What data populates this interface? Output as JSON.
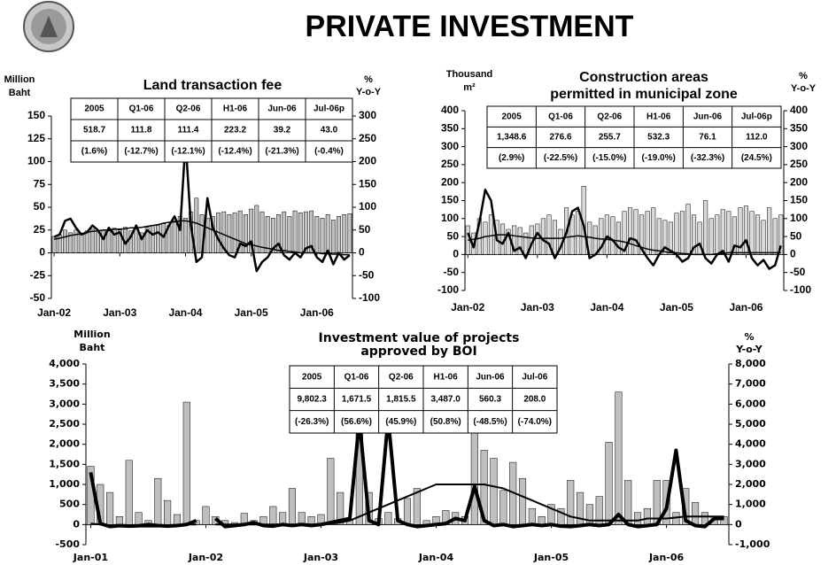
{
  "title": "PRIVATE INVESTMENT",
  "chart_data": [
    {
      "type": "bar",
      "title": "Land transaction fee",
      "ylabel": [
        "Million",
        "Baht"
      ],
      "y2label": [
        "%",
        "Y-o-Y"
      ],
      "categories": [
        "Jan-02",
        null,
        null,
        null,
        null,
        null,
        null,
        null,
        null,
        null,
        null,
        null,
        "Jan-03",
        null,
        null,
        null,
        null,
        null,
        null,
        null,
        null,
        null,
        null,
        null,
        "Jan-04",
        null,
        null,
        null,
        null,
        null,
        null,
        null,
        null,
        null,
        null,
        null,
        "Jan-05",
        null,
        null,
        null,
        null,
        null,
        null,
        null,
        null,
        null,
        null,
        null,
        "Jan-06",
        null,
        null,
        null,
        null,
        null,
        null
      ],
      "ylim": [
        -50,
        150
      ],
      "yticks": [
        -50,
        -25,
        0,
        25,
        50,
        75,
        100,
        125,
        150
      ],
      "y2lim": [
        -100,
        300
      ],
      "y2ticks": [
        -100,
        -50,
        0,
        50,
        100,
        150,
        200,
        250,
        300
      ],
      "series": [
        {
          "type": "bar",
          "axis": "y",
          "color": "#c0c0c0",
          "values": [
            18,
            20,
            25,
            22,
            25,
            20,
            24,
            26,
            22,
            25,
            24,
            27,
            25,
            28,
            24,
            26,
            22,
            28,
            30,
            30,
            32,
            30,
            35,
            40,
            38,
            45,
            60,
            42,
            38,
            40,
            44,
            45,
            42,
            44,
            46,
            42,
            48,
            52,
            45,
            40,
            38,
            42,
            45,
            40,
            46,
            44,
            45,
            46,
            40,
            38,
            42,
            36,
            40,
            42,
            43
          ]
        },
        {
          "type": "line",
          "axis": "y2",
          "color": "#000000",
          "width": 2.5,
          "values": [
            35,
            40,
            70,
            75,
            55,
            40,
            45,
            60,
            50,
            30,
            55,
            40,
            45,
            20,
            35,
            60,
            30,
            50,
            40,
            45,
            35,
            60,
            80,
            50,
            245,
            60,
            -20,
            -10,
            120,
            55,
            30,
            10,
            -5,
            -10,
            20,
            15,
            25,
            -40,
            -20,
            -10,
            10,
            20,
            -5,
            -15,
            0,
            -10,
            10,
            15,
            -10,
            -20,
            5,
            -25,
            0,
            -15,
            -5
          ]
        },
        {
          "type": "line",
          "axis": "y2",
          "color": "#000000",
          "width": 1.5,
          "values": [
            30,
            32,
            35,
            38,
            40,
            42,
            45,
            47,
            48,
            50,
            50,
            52,
            52,
            53,
            55,
            55,
            56,
            58,
            60,
            62,
            65,
            67,
            68,
            70,
            70,
            68,
            65,
            60,
            55,
            50,
            45,
            40,
            35,
            30,
            25,
            20,
            18,
            15,
            12,
            10,
            8,
            5,
            5,
            3,
            2,
            0,
            0,
            0,
            0,
            -2,
            -2,
            -3,
            -3,
            -4,
            -4
          ]
        }
      ],
      "table": {
        "header": [
          "2005",
          "Q1-06",
          "Q2-06",
          "H1-06",
          "Jun-06",
          "Jul-06p"
        ],
        "rows": [
          [
            "518.7",
            "111.8",
            "111.4",
            "223.2",
            "39.2",
            "43.0"
          ],
          [
            "(1.6%)",
            "(-12.7%)",
            "(-12.1%)",
            "(-12.4%)",
            "(-21.3%)",
            "(-0.4%)"
          ]
        ]
      }
    },
    {
      "type": "bar",
      "title": [
        "Construction areas",
        "permitted in municipal zone"
      ],
      "ylabel": [
        "Thousand",
        "m²"
      ],
      "y2label": [
        "%",
        "Y-o-Y"
      ],
      "categories": [
        "Jan-02",
        null,
        null,
        null,
        null,
        null,
        null,
        null,
        null,
        null,
        null,
        null,
        "Jan-03",
        null,
        null,
        null,
        null,
        null,
        null,
        null,
        null,
        null,
        null,
        null,
        "Jan-04",
        null,
        null,
        null,
        null,
        null,
        null,
        null,
        null,
        null,
        null,
        null,
        "Jan-05",
        null,
        null,
        null,
        null,
        null,
        null,
        null,
        null,
        null,
        null,
        null,
        "Jan-06",
        null,
        null,
        null,
        null,
        null,
        null
      ],
      "ylim": [
        -100,
        400
      ],
      "yticks": [
        -100,
        -50,
        0,
        50,
        100,
        150,
        200,
        250,
        300,
        350,
        400
      ],
      "y2lim": [
        -100,
        400
      ],
      "y2ticks": [
        -100,
        -50,
        0,
        50,
        100,
        150,
        200,
        250,
        300,
        350,
        400
      ],
      "series": [
        {
          "type": "bar",
          "axis": "y",
          "color": "#d9d9d9",
          "values": [
            80,
            60,
            100,
            90,
            110,
            95,
            85,
            70,
            80,
            75,
            60,
            80,
            85,
            100,
            110,
            95,
            70,
            130,
            110,
            120,
            190,
            90,
            80,
            100,
            110,
            105,
            90,
            120,
            130,
            125,
            110,
            120,
            130,
            100,
            95,
            90,
            115,
            120,
            140,
            110,
            90,
            150,
            100,
            110,
            125,
            120,
            105,
            130,
            135,
            120,
            110,
            95,
            130,
            100,
            110
          ]
        },
        {
          "type": "line",
          "axis": "y2",
          "color": "#000000",
          "width": 2.5,
          "values": [
            60,
            20,
            90,
            180,
            150,
            40,
            30,
            60,
            10,
            20,
            -10,
            30,
            60,
            40,
            30,
            -10,
            20,
            60,
            120,
            130,
            80,
            -10,
            0,
            20,
            50,
            40,
            20,
            10,
            45,
            40,
            15,
            -10,
            -30,
            0,
            20,
            10,
            0,
            -20,
            -10,
            20,
            30,
            -10,
            -25,
            0,
            10,
            -20,
            25,
            20,
            40,
            -10,
            -30,
            -15,
            -40,
            -30,
            25
          ]
        },
        {
          "type": "line",
          "axis": "y2",
          "color": "#000000",
          "width": 1.5,
          "values": [
            40,
            42,
            45,
            50,
            52,
            55,
            55,
            55,
            52,
            50,
            48,
            46,
            45,
            45,
            45,
            45,
            45,
            48,
            50,
            52,
            50,
            48,
            45,
            43,
            42,
            40,
            38,
            35,
            30,
            25,
            20,
            15,
            12,
            10,
            8,
            5,
            5,
            3,
            2,
            0,
            0,
            0,
            0,
            2,
            3,
            5,
            5,
            5,
            5,
            5,
            5,
            5,
            5,
            5,
            5
          ]
        }
      ],
      "table": {
        "header": [
          "2005",
          "Q1-06",
          "Q2-06",
          "H1-06",
          "Jun-06",
          "Jul-06p"
        ],
        "rows": [
          [
            "1,348.6",
            "276.6",
            "255.7",
            "532.3",
            "76.1",
            "112.0"
          ],
          [
            "(2.9%)",
            "(-22.5%)",
            "(-15.0%)",
            "(-19.0%)",
            "(-32.3%)",
            "(24.5%)"
          ]
        ]
      }
    },
    {
      "type": "bar",
      "title": [
        "Investment value of projects",
        "approved by BOI"
      ],
      "ylabel": [
        "Million",
        "Baht"
      ],
      "y2label": [
        "%",
        "Y-o-Y"
      ],
      "categories": [
        "Jan-01",
        null,
        null,
        null,
        null,
        null,
        null,
        null,
        null,
        null,
        null,
        null,
        "Jan-02",
        null,
        null,
        null,
        null,
        null,
        null,
        null,
        null,
        null,
        null,
        null,
        "Jan-03",
        null,
        null,
        null,
        null,
        null,
        null,
        null,
        null,
        null,
        null,
        null,
        "Jan-04",
        null,
        null,
        null,
        null,
        null,
        null,
        null,
        null,
        null,
        null,
        null,
        "Jan-05",
        null,
        null,
        null,
        null,
        null,
        null,
        null,
        null,
        null,
        null,
        null,
        "Jan-06",
        null,
        null,
        null,
        null,
        null,
        null
      ],
      "ylim": [
        -500,
        4000
      ],
      "yticks": [
        -500,
        0,
        500,
        {
          "value": 1000,
          "label": "1,000"
        },
        {
          "value": 1500,
          "label": "1,500"
        },
        {
          "value": 2000,
          "label": "2,000"
        },
        {
          "value": 2500,
          "label": "2,500"
        },
        {
          "value": 3000,
          "label": "3,000"
        },
        {
          "value": 3500,
          "label": "3,500"
        },
        {
          "value": 4000,
          "label": "4,000"
        }
      ],
      "y2lim": [
        -1000,
        8000
      ],
      "y2ticks": [
        {
          "value": -1000,
          "label": "-1,000"
        },
        0,
        {
          "value": 1000,
          "label": "1,000"
        },
        {
          "value": 2000,
          "label": "2,000"
        },
        {
          "value": 3000,
          "label": "3,000"
        },
        {
          "value": 4000,
          "label": "4,000"
        },
        {
          "value": 5000,
          "label": "5,000"
        },
        {
          "value": 6000,
          "label": "6,000"
        },
        {
          "value": 7000,
          "label": "7,000"
        },
        {
          "value": 8000,
          "label": "8,000"
        }
      ],
      "series": [
        {
          "type": "bar",
          "axis": "y",
          "color": "#bfbfbf",
          "values": [
            1450,
            1000,
            800,
            200,
            1600,
            300,
            100,
            1150,
            600,
            250,
            3050,
            100,
            450,
            200,
            100,
            50,
            280,
            100,
            200,
            450,
            300,
            900,
            300,
            200,
            250,
            1650,
            800,
            100,
            2550,
            800,
            150,
            300,
            150,
            650,
            900,
            100,
            200,
            350,
            300,
            200,
            3150,
            1850,
            1650,
            850,
            1550,
            1150,
            400,
            200,
            500,
            400,
            1100,
            800,
            500,
            700,
            2050,
            3300,
            1100,
            300,
            400,
            1100,
            1100,
            300,
            900,
            550,
            300,
            200,
            200
          ]
        },
        {
          "type": "line",
          "axis": "y2",
          "color": "#000000",
          "width": 4,
          "values": [
            2600,
            50,
            -100,
            -50,
            -80,
            -60,
            0,
            -50,
            -80,
            -50,
            0,
            200,
            null,
            300,
            -100,
            -50,
            0,
            100,
            -50,
            -80,
            0,
            -50,
            0,
            -50,
            0,
            100,
            200,
            300,
            5200,
            200,
            0,
            5300,
            200,
            0,
            -100,
            -50,
            0,
            50,
            300,
            200,
            1900,
            200,
            -50,
            0,
            -100,
            -50,
            0,
            -50,
            0,
            -80,
            -100,
            -50,
            0,
            -50,
            0,
            500,
            0,
            -100,
            -50,
            0,
            800,
            3700,
            200,
            -50,
            -100,
            300,
            300
          ]
        },
        {
          "type": "line",
          "axis": "y2",
          "color": "#000000",
          "width": 2,
          "values": [
            50,
            0,
            -50,
            -100,
            -100,
            -100,
            -100,
            -100,
            -50,
            -50,
            0,
            0,
            null,
            0,
            0,
            0,
            0,
            0,
            0,
            0,
            0,
            0,
            0,
            0,
            0,
            50,
            100,
            200,
            400,
            600,
            800,
            1000,
            1200,
            1400,
            1600,
            1800,
            2000,
            2000,
            2000,
            2000,
            2000,
            2000,
            1900,
            1800,
            1600,
            1400,
            1200,
            1000,
            800,
            600,
            400,
            300,
            200,
            200,
            200,
            200,
            200,
            200,
            300,
            300,
            300,
            350,
            400,
            400,
            400,
            400,
            400
          ]
        }
      ],
      "table": {
        "header": [
          "2005",
          "Q1-06",
          "Q2-06",
          "H1-06",
          "Jun-06",
          "Jul-06"
        ],
        "rows": [
          [
            "9,802.3",
            "1,671.5",
            "1,815.5",
            "3,487.0",
            "560.3",
            "208.0"
          ],
          [
            "(-26.3%)",
            "(56.6%)",
            "(45.9%)",
            "(50.8%)",
            "(-48.5%)",
            "(-74.0%)"
          ]
        ]
      }
    }
  ]
}
